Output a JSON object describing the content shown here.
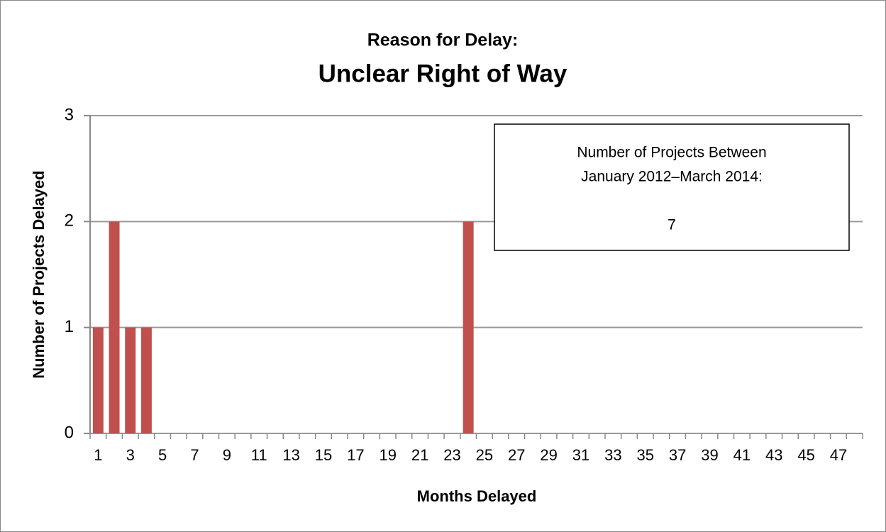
{
  "chart_data": {
    "type": "bar",
    "title": "Reason for Delay:",
    "subtitle": "Unclear Right of Way",
    "x_label": "Months Delayed",
    "y_label": "Number of Projects Delayed",
    "categories": [
      "1",
      null,
      "3",
      null,
      "5",
      null,
      "7",
      null,
      "9",
      null,
      "11",
      null,
      "13",
      null,
      "15",
      null,
      "17",
      null,
      "19",
      null,
      "21",
      null,
      "23",
      null,
      "25",
      null,
      "27",
      null,
      "29",
      null,
      "31",
      null,
      "33",
      null,
      "35",
      null,
      "37",
      null,
      "39",
      null,
      "41",
      null,
      "43",
      null,
      "45",
      null,
      "47",
      null
    ],
    "values": [
      1,
      2,
      1,
      1,
      0,
      0,
      0,
      0,
      0,
      0,
      0,
      0,
      0,
      0,
      0,
      0,
      0,
      0,
      0,
      0,
      0,
      0,
      0,
      2,
      0,
      0,
      0,
      0,
      0,
      0,
      0,
      0,
      0,
      0,
      0,
      0,
      0,
      0,
      0,
      0,
      0,
      0,
      0,
      0,
      0,
      0,
      0,
      0
    ],
    "color": "#c0504d",
    "ylim": [
      0,
      3
    ],
    "yticks": [
      0,
      1,
      2,
      3
    ],
    "grid": true,
    "annotation": {
      "lines": [
        "Number of Projects Between",
        "January 2012–March 2014:"
      ],
      "value": "7"
    }
  }
}
